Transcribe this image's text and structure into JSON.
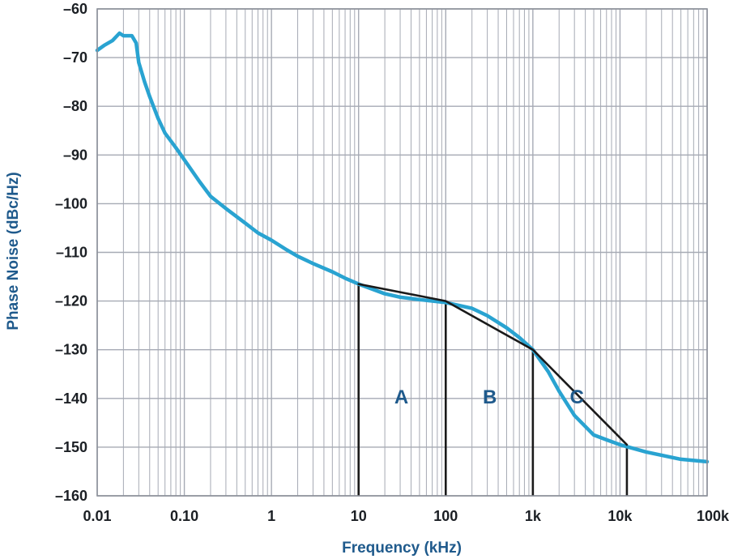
{
  "chart_data": {
    "type": "line",
    "title": "",
    "xlabel": "Frequency (kHz)",
    "ylabel": "Phase Noise (dBc/Hz)",
    "x_scale": "log",
    "xlim": [
      0.01,
      100000
    ],
    "ylim": [
      -160,
      -60
    ],
    "x_ticks": [
      0.01,
      0.1,
      1,
      10,
      100,
      1000,
      10000,
      100000
    ],
    "x_tick_labels": [
      "0.01",
      "0.10",
      "1",
      "10",
      "100",
      "1k",
      "10k",
      "100k"
    ],
    "y_ticks": [
      -60,
      -70,
      -80,
      -90,
      -100,
      -110,
      -120,
      -130,
      -140,
      -150,
      -160
    ],
    "y_tick_labels": [
      "–60",
      "–70",
      "–80",
      "–90",
      "–100",
      "–110",
      "–120",
      "–130",
      "–140",
      "–150",
      "–160"
    ],
    "grid": true,
    "colors": {
      "measured": "#29a3d1",
      "approximation": "#1a1a1a",
      "grid": "#a6aab4",
      "axis_text": "#1f5a8c"
    },
    "series": [
      {
        "role": "measured",
        "x": [
          0.01,
          0.012,
          0.015,
          0.018,
          0.02,
          0.025,
          0.028,
          0.03,
          0.035,
          0.04,
          0.05,
          0.06,
          0.08,
          0.1,
          0.15,
          0.2,
          0.3,
          0.5,
          0.7,
          1,
          1.5,
          2,
          3,
          5,
          7,
          10,
          20,
          30,
          50,
          100,
          200,
          300,
          500,
          700,
          1000,
          1500,
          2000,
          3000,
          5000,
          7000,
          10000,
          20000,
          50000,
          100000
        ],
        "y": [
          -68.5,
          -67.5,
          -66.5,
          -65.0,
          -65.5,
          -65.5,
          -67.0,
          -71.0,
          -75.0,
          -78.0,
          -82.5,
          -85.5,
          -88.5,
          -91.0,
          -95.5,
          -98.5,
          -101.0,
          -104.0,
          -106.0,
          -107.5,
          -109.5,
          -110.8,
          -112.3,
          -114.0,
          -115.3,
          -116.5,
          -118.5,
          -119.2,
          -119.7,
          -120.3,
          -121.5,
          -123.0,
          -125.5,
          -127.5,
          -130.0,
          -134.5,
          -138.5,
          -143.5,
          -147.5,
          -148.5,
          -149.5,
          -151.0,
          -152.5,
          -153.0
        ]
      },
      {
        "role": "approximation",
        "x": [
          10,
          100,
          1000,
          12000
        ],
        "y": [
          -116.5,
          -120,
          -130,
          -149.5
        ]
      }
    ],
    "region_bounds": [
      [
        10,
        100
      ],
      [
        100,
        1000
      ],
      [
        1000,
        12000
      ]
    ],
    "regions": [
      {
        "label": "A",
        "x": 31,
        "y": -141
      },
      {
        "label": "B",
        "x": 320,
        "y": -141
      },
      {
        "label": "C",
        "x": 3200,
        "y": -141
      }
    ]
  }
}
